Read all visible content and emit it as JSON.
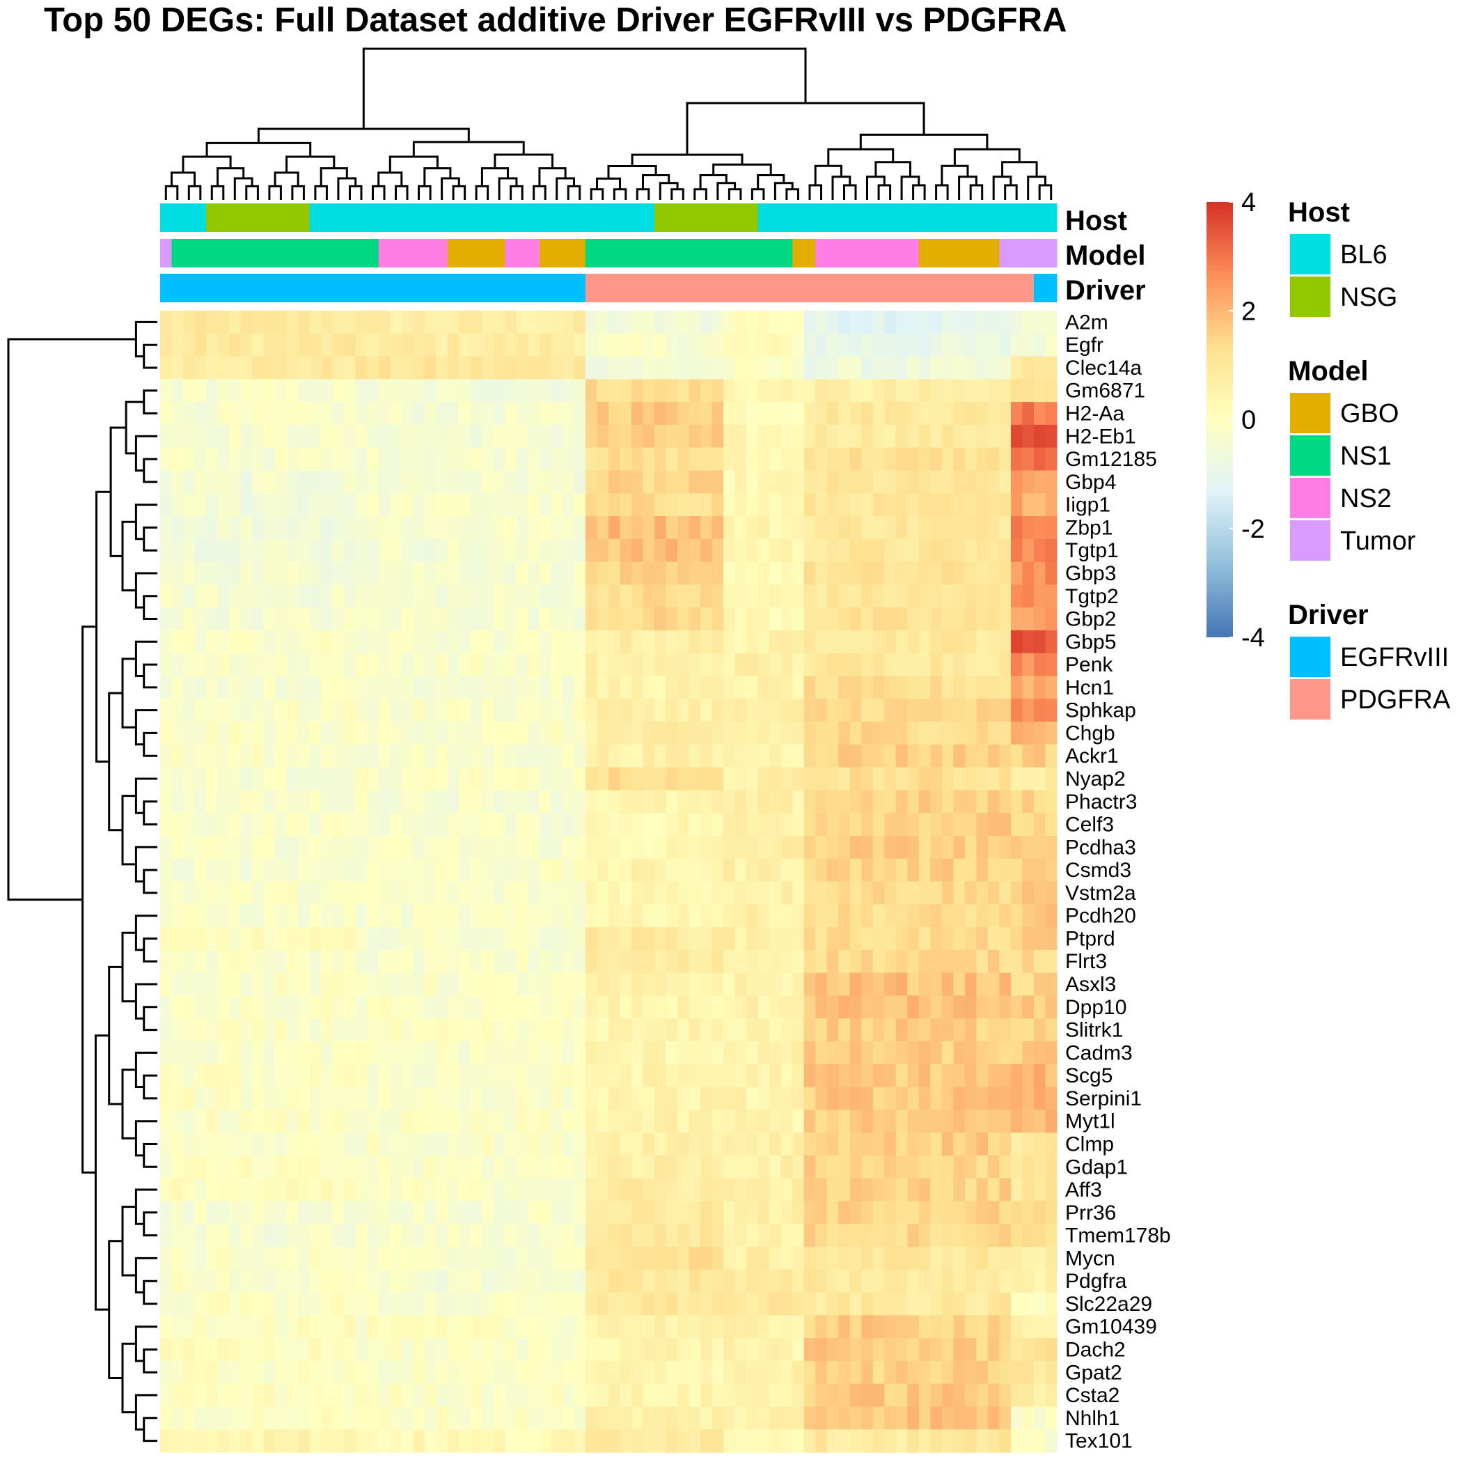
{
  "chart_data": {
    "type": "heatmap",
    "title": "Top 50 DEGs: Full Dataset additive Driver EGFRvIII vs PDGFRA",
    "genes": [
      "A2m",
      "Egfr",
      "Clec14a",
      "Gm6871",
      "H2-Aa",
      "H2-Eb1",
      "Gm12185",
      "Gbp4",
      "Iigp1",
      "Zbp1",
      "Tgtp1",
      "Gbp3",
      "Tgtp2",
      "Gbp2",
      "Gbp5",
      "Penk",
      "Hcn1",
      "Sphkap",
      "Chgb",
      "Ackr1",
      "Nyap2",
      "Phactr3",
      "Celf3",
      "Pcdha3",
      "Csmd3",
      "Vstm2a",
      "Pcdh20",
      "Ptprd",
      "Flrt3",
      "Asxl3",
      "Dpp10",
      "Slitrk1",
      "Cadm3",
      "Scg5",
      "Serpini1",
      "Myt1l",
      "Clmp",
      "Gdap1",
      "Aff3",
      "Prr36",
      "Tmem178b",
      "Mycn",
      "Pdgfra",
      "Slc22a29",
      "Gm10439",
      "Dach2",
      "Gpat2",
      "Csta2",
      "Nhlh1",
      "Tex101"
    ],
    "n_samples": 78,
    "gene_group_means": [
      [
        0.9,
        0.7,
        -0.6,
        0.1,
        -1.1,
        -0.4
      ],
      [
        0.9,
        0.8,
        -0.3,
        0.1,
        -0.9,
        -0.5
      ],
      [
        0.9,
        1.0,
        -0.5,
        -0.2,
        -0.7,
        0.9
      ],
      [
        -0.3,
        -0.5,
        1.3,
        0.4,
        0.6,
        1.4
      ],
      [
        -0.3,
        -0.4,
        1.7,
        0.2,
        1.0,
        3.0
      ],
      [
        -0.3,
        -0.4,
        1.5,
        0.3,
        0.9,
        3.5
      ],
      [
        -0.3,
        -0.3,
        1.2,
        0.3,
        1.2,
        3.0
      ],
      [
        -0.5,
        -0.4,
        1.4,
        0.3,
        1.0,
        2.2
      ],
      [
        -0.5,
        -0.3,
        1.3,
        0.3,
        1.0,
        2.2
      ],
      [
        -0.5,
        -0.3,
        1.9,
        0.4,
        1.0,
        3.0
      ],
      [
        -0.5,
        -0.4,
        1.8,
        0.4,
        1.0,
        2.8
      ],
      [
        -0.4,
        -0.3,
        1.4,
        0.3,
        1.1,
        2.6
      ],
      [
        -0.4,
        -0.4,
        1.3,
        0.3,
        1.0,
        2.6
      ],
      [
        -0.4,
        -0.3,
        1.4,
        0.3,
        1.1,
        2.4
      ],
      [
        -0.2,
        -0.3,
        0.7,
        0.5,
        1.0,
        3.4
      ],
      [
        -0.2,
        -0.2,
        0.6,
        0.6,
        1.0,
        2.6
      ],
      [
        -0.3,
        -0.3,
        0.5,
        0.5,
        1.2,
        2.2
      ],
      [
        -0.2,
        -0.2,
        0.7,
        0.6,
        1.4,
        2.6
      ],
      [
        -0.2,
        -0.2,
        0.7,
        0.6,
        1.4,
        2.0
      ],
      [
        -0.2,
        -0.3,
        0.6,
        0.5,
        1.6,
        1.6
      ],
      [
        -0.3,
        -0.2,
        1.2,
        0.6,
        1.2,
        0.8
      ],
      [
        -0.3,
        -0.3,
        0.4,
        0.6,
        1.5,
        1.4
      ],
      [
        -0.2,
        -0.3,
        0.3,
        0.6,
        1.6,
        1.4
      ],
      [
        -0.3,
        -0.3,
        0.3,
        0.7,
        1.6,
        1.4
      ],
      [
        -0.3,
        -0.2,
        0.4,
        0.6,
        1.5,
        1.6
      ],
      [
        -0.2,
        -0.3,
        0.4,
        0.6,
        1.4,
        1.8
      ],
      [
        -0.3,
        -0.3,
        0.4,
        0.6,
        1.3,
        1.6
      ],
      [
        0.0,
        -0.3,
        0.9,
        0.7,
        1.3,
        1.5
      ],
      [
        -0.2,
        -0.3,
        0.8,
        0.6,
        1.4,
        1.4
      ],
      [
        -0.2,
        -0.2,
        0.5,
        0.5,
        1.8,
        1.4
      ],
      [
        -0.2,
        -0.2,
        0.4,
        0.5,
        1.8,
        1.6
      ],
      [
        -0.2,
        -0.2,
        0.4,
        0.5,
        1.6,
        1.6
      ],
      [
        -0.2,
        -0.2,
        0.4,
        0.5,
        1.6,
        1.6
      ],
      [
        -0.1,
        -0.2,
        0.5,
        0.5,
        1.7,
        2.0
      ],
      [
        -0.1,
        -0.2,
        0.5,
        0.5,
        1.7,
        2.0
      ],
      [
        -0.1,
        -0.2,
        0.5,
        0.5,
        1.6,
        2.0
      ],
      [
        -0.2,
        -0.2,
        0.7,
        0.7,
        1.6,
        1.0
      ],
      [
        -0.1,
        -0.2,
        0.7,
        0.6,
        1.5,
        1.0
      ],
      [
        0.0,
        -0.2,
        0.8,
        0.7,
        1.5,
        1.0
      ],
      [
        -0.3,
        -0.3,
        0.9,
        0.6,
        1.5,
        1.2
      ],
      [
        -0.4,
        -0.3,
        1.0,
        0.6,
        1.4,
        1.4
      ],
      [
        -0.2,
        -0.3,
        1.2,
        0.7,
        1.0,
        0.6
      ],
      [
        -0.2,
        -0.4,
        1.0,
        0.8,
        0.9,
        0.5
      ],
      [
        -0.1,
        -0.3,
        1.0,
        0.9,
        0.9,
        0.0
      ],
      [
        0.0,
        -0.1,
        0.6,
        0.5,
        1.6,
        0.6
      ],
      [
        0.0,
        -0.2,
        0.5,
        0.5,
        1.6,
        1.2
      ],
      [
        -0.1,
        -0.2,
        0.4,
        0.6,
        1.5,
        1.0
      ],
      [
        0.0,
        -0.1,
        0.4,
        0.5,
        1.7,
        0.6
      ],
      [
        -0.1,
        -0.1,
        0.6,
        0.6,
        1.8,
        -0.2
      ],
      [
        0.5,
        0.2,
        1.0,
        0.4,
        0.9,
        -0.3
      ]
    ],
    "color_scale": {
      "min": -4,
      "max": 4,
      "ticks": [
        4,
        2,
        0,
        -2,
        -4
      ],
      "colors": [
        "#4575b4",
        "#91bfdb",
        "#e0f3f8",
        "#ffffbf",
        "#fee090",
        "#fc8d59",
        "#d73027"
      ]
    },
    "annotations": {
      "Host": [
        {
          "value": "BL6",
          "count": 4
        },
        {
          "value": "NSG",
          "count": 9
        },
        {
          "value": "BL6",
          "count": 30
        },
        {
          "value": "NSG",
          "count": 9
        },
        {
          "value": "BL6",
          "count": 26
        }
      ],
      "Model": [
        {
          "value": "Tumor",
          "count": 1
        },
        {
          "value": "NS1",
          "count": 18
        },
        {
          "value": "NS2",
          "count": 6
        },
        {
          "value": "GBO",
          "count": 5
        },
        {
          "value": "NS2",
          "count": 3
        },
        {
          "value": "GBO",
          "count": 4
        },
        {
          "value": "NS1",
          "count": 18
        },
        {
          "value": "GBO",
          "count": 2
        },
        {
          "value": "NS2",
          "count": 9
        },
        {
          "value": "GBO",
          "count": 7
        },
        {
          "value": "Tumor",
          "count": 5
        }
      ],
      "Driver": [
        {
          "value": "EGFRvIII",
          "count": 37
        },
        {
          "value": "PDGFRA",
          "count": 39
        },
        {
          "value": "EGFRvIII",
          "count": 2
        }
      ]
    },
    "legends": [
      {
        "title": "Host",
        "items": [
          {
            "label": "BL6",
            "color": "#00DDE3"
          },
          {
            "label": "NSG",
            "color": "#92C800"
          }
        ]
      },
      {
        "title": "Model",
        "items": [
          {
            "label": "GBO",
            "color": "#E3AE00"
          },
          {
            "label": "NS1",
            "color": "#00D883"
          },
          {
            "label": "NS2",
            "color": "#FF7DE4"
          },
          {
            "label": "Tumor",
            "color": "#DA9BFF"
          }
        ]
      },
      {
        "title": "Driver",
        "items": [
          {
            "label": "EGFRvIII",
            "color": "#00BFFF"
          },
          {
            "label": "PDGFRA",
            "color": "#FF968A"
          }
        ]
      }
    ]
  }
}
